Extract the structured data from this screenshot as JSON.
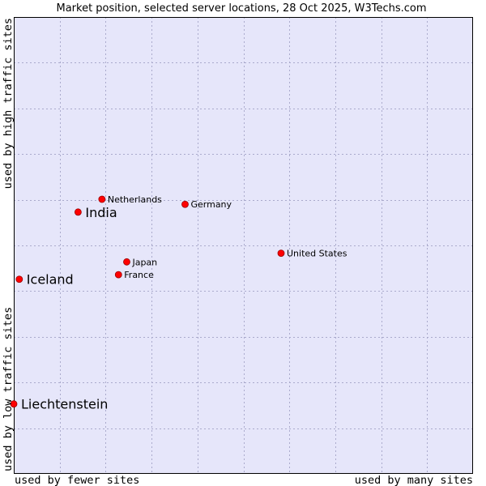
{
  "chart_data": {
    "type": "scatter",
    "title": "Market position, selected server locations, 28 Oct 2025, W3Techs.com",
    "xlabel_left": "used by fewer sites",
    "xlabel_right": "used by many sites",
    "ylabel_bottom": "used by low traffic sites",
    "ylabel_top": "used by high traffic sites",
    "xlim": [
      0,
      100
    ],
    "ylim": [
      0,
      100
    ],
    "grid": true,
    "colors": {
      "plot_background": "#e6e6fa",
      "grid": "#aaaacc",
      "point": "#ff0000",
      "point_outline": "#990000"
    },
    "points": [
      {
        "label": "Netherlands",
        "x": 19.2,
        "y": 60.1,
        "emphasis": false
      },
      {
        "label": "India",
        "x": 14.0,
        "y": 57.3,
        "emphasis": true
      },
      {
        "label": "Germany",
        "x": 37.3,
        "y": 59.0,
        "emphasis": false
      },
      {
        "label": "United States",
        "x": 58.2,
        "y": 48.3,
        "emphasis": false
      },
      {
        "label": "Japan",
        "x": 24.6,
        "y": 46.4,
        "emphasis": false
      },
      {
        "label": "France",
        "x": 22.8,
        "y": 43.6,
        "emphasis": false
      },
      {
        "label": "Iceland",
        "x": 1.2,
        "y": 42.6,
        "emphasis": true
      },
      {
        "label": "Liechtenstein",
        "x": 0.0,
        "y": 15.3,
        "emphasis": true
      }
    ]
  }
}
